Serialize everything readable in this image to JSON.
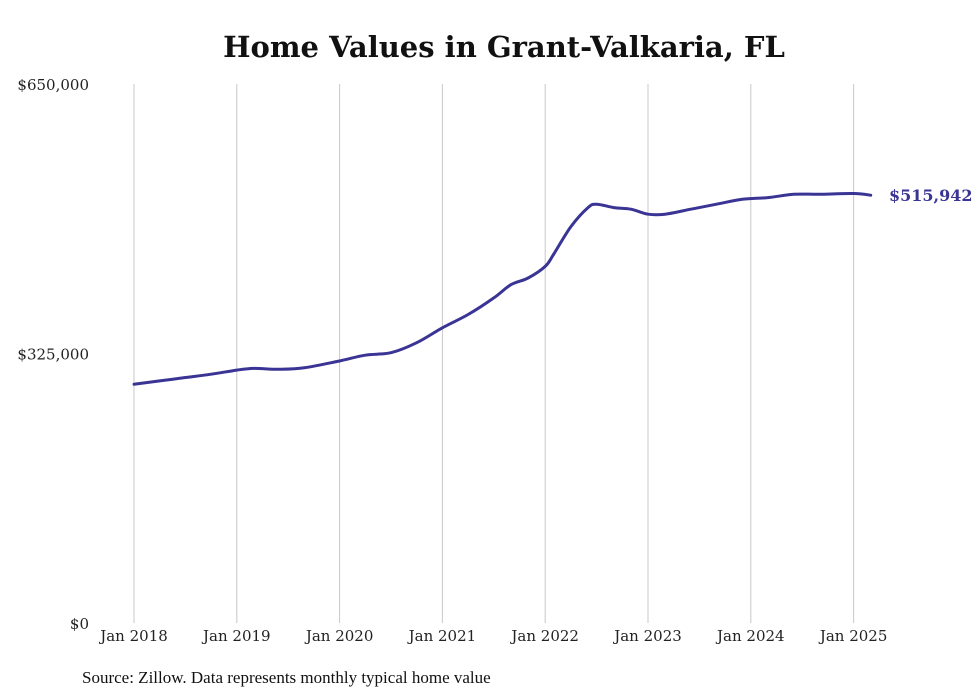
{
  "title": "Home Values in Grant-Valkaria, FL",
  "source": "Source: Zillow. Data represents monthly typical home value",
  "chart_data": {
    "type": "line",
    "title": "Home Values in Grant-Valkaria, FL",
    "xlabel": "",
    "ylabel": "",
    "ylim": [
      0,
      650000
    ],
    "xlim": [
      "2018-01",
      "2025-03"
    ],
    "grid": "vertical lines at each January",
    "y_ticks": [
      {
        "value": 0,
        "label": "$0"
      },
      {
        "value": 325000,
        "label": "$325,000"
      },
      {
        "value": 650000,
        "label": "$650,000"
      }
    ],
    "x_ticks": [
      {
        "date": "2018-01",
        "label": "Jan 2018"
      },
      {
        "date": "2019-01",
        "label": "Jan 2019"
      },
      {
        "date": "2020-01",
        "label": "Jan 2020"
      },
      {
        "date": "2021-01",
        "label": "Jan 2021"
      },
      {
        "date": "2022-01",
        "label": "Jan 2022"
      },
      {
        "date": "2023-01",
        "label": "Jan 2023"
      },
      {
        "date": "2024-01",
        "label": "Jan 2024"
      },
      {
        "date": "2025-01",
        "label": "Jan 2025"
      }
    ],
    "series": [
      {
        "color": "#3a3495",
        "points": [
          [
            "2018-01",
            288000
          ],
          [
            "2018-04",
            292000
          ],
          [
            "2018-07",
            296000
          ],
          [
            "2018-10",
            300000
          ],
          [
            "2019-01",
            305000
          ],
          [
            "2019-03",
            307000
          ],
          [
            "2019-06",
            306000
          ],
          [
            "2019-09",
            308000
          ],
          [
            "2020-01",
            316000
          ],
          [
            "2020-04",
            323000
          ],
          [
            "2020-07",
            326000
          ],
          [
            "2020-10",
            338000
          ],
          [
            "2021-01",
            356000
          ],
          [
            "2021-04",
            372000
          ],
          [
            "2021-07",
            392000
          ],
          [
            "2021-09",
            408000
          ],
          [
            "2021-11",
            416000
          ],
          [
            "2022-01",
            430000
          ],
          [
            "2022-02",
            445000
          ],
          [
            "2022-04",
            478000
          ],
          [
            "2022-06",
            501000
          ],
          [
            "2022-07",
            505000
          ],
          [
            "2022-09",
            501000
          ],
          [
            "2022-11",
            499000
          ],
          [
            "2023-01",
            493000
          ],
          [
            "2023-03",
            493000
          ],
          [
            "2023-06",
            499000
          ],
          [
            "2023-09",
            505000
          ],
          [
            "2023-12",
            511000
          ],
          [
            "2024-03",
            513000
          ],
          [
            "2024-06",
            517000
          ],
          [
            "2024-09",
            517000
          ],
          [
            "2025-01",
            518000
          ],
          [
            "2025-03",
            515942
          ]
        ]
      }
    ],
    "annotations": [
      {
        "date": "2025-03",
        "value": 515942,
        "text": "$515,942"
      }
    ]
  }
}
